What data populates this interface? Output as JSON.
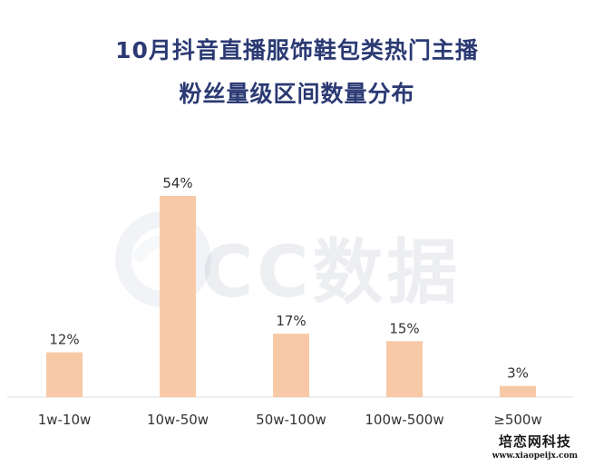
{
  "title_lines": [
    "10月抖音直播服饰鞋包类热门主播",
    "粉丝量级区间数量分布"
  ],
  "watermark": {
    "logo_text": "CC数据"
  },
  "site_mark": {
    "name": "培恋网科技",
    "url": "www.xiaopeijx.com"
  },
  "colors": {
    "bar": "#f8c9a6",
    "title": "#2b3a73",
    "axis": "#dddddd",
    "text": "#333333"
  },
  "chart_data": {
    "type": "bar",
    "title": "10月抖音直播服饰鞋包类热门主播粉丝量级区间数量分布",
    "categories": [
      "1w-10w",
      "10w-50w",
      "50w-100w",
      "100w-500w",
      "≥500w"
    ],
    "values": [
      12,
      54,
      17,
      15,
      3
    ],
    "data_labels": [
      "12%",
      "54%",
      "17%",
      "15%",
      "3%"
    ],
    "unit": "%",
    "ylim": [
      0,
      54
    ],
    "grid": false,
    "legend": "none"
  }
}
